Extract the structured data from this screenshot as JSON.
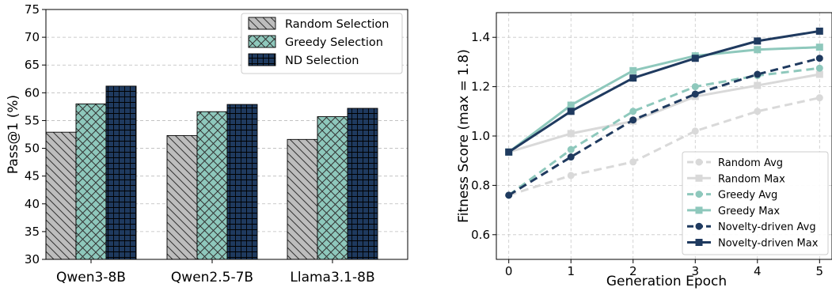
{
  "chart_data": [
    {
      "type": "bar",
      "ylabel": "Pass@1 (%)",
      "ylim": [
        30,
        75
      ],
      "yticks": [
        30,
        35,
        40,
        45,
        50,
        55,
        60,
        65,
        70,
        75
      ],
      "categories": [
        "Qwen3-8B",
        "Qwen2.5-7B",
        "Llama3.1-8B"
      ],
      "grid": "y-dashed",
      "legend": "top-right",
      "series": [
        {
          "name": "Random Selection",
          "values": [
            52.9,
            52.3,
            51.6
          ],
          "color": "#bdbdbd",
          "hatch": "diagonal"
        },
        {
          "name": "Greedy Selection",
          "values": [
            58.0,
            56.6,
            55.7
          ],
          "color": "#8ec8bc",
          "hatch": "cross"
        },
        {
          "name": "ND Selection",
          "values": [
            61.2,
            57.9,
            57.2
          ],
          "color": "#1f3a5f",
          "hatch": "grid"
        }
      ]
    },
    {
      "type": "line",
      "xlabel": "Generation Epoch",
      "ylabel": "Fitness Score (max = 1.8)",
      "x": [
        0,
        1,
        2,
        3,
        4,
        5
      ],
      "xlim": [
        -0.2,
        5.2
      ],
      "ylim": [
        0.5,
        1.5
      ],
      "yticks": [
        0.6,
        0.8,
        1.0,
        1.2,
        1.4
      ],
      "grid": "both-dashed",
      "legend": "bottom-right",
      "series": [
        {
          "name": "Random Avg",
          "values": [
            0.76,
            0.84,
            0.895,
            1.02,
            1.1,
            1.155
          ],
          "color": "#d9d9d9",
          "dash": true,
          "marker": "circle"
        },
        {
          "name": "Random Max",
          "values": [
            0.935,
            1.01,
            1.06,
            1.16,
            1.205,
            1.25
          ],
          "color": "#d9d9d9",
          "dash": false,
          "marker": "square"
        },
        {
          "name": "Greedy Avg",
          "values": [
            0.76,
            0.945,
            1.1,
            1.2,
            1.245,
            1.275
          ],
          "color": "#8ec8bc",
          "dash": true,
          "marker": "circle"
        },
        {
          "name": "Greedy Max",
          "values": [
            0.935,
            1.125,
            1.265,
            1.325,
            1.35,
            1.36
          ],
          "color": "#8ec8bc",
          "dash": false,
          "marker": "square"
        },
        {
          "name": "Novelty-driven Avg",
          "values": [
            0.76,
            0.915,
            1.065,
            1.17,
            1.25,
            1.315
          ],
          "color": "#1f3a5f",
          "dash": true,
          "marker": "circle"
        },
        {
          "name": "Novelty-driven Max",
          "values": [
            0.935,
            1.1,
            1.235,
            1.315,
            1.385,
            1.425
          ],
          "color": "#1f3a5f",
          "dash": false,
          "marker": "square"
        }
      ]
    }
  ]
}
